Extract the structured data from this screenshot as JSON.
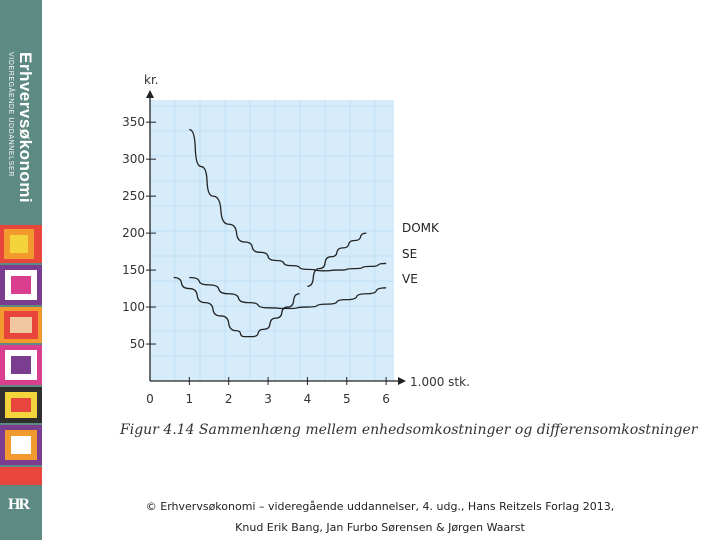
{
  "sidebar": {
    "brand_title": "Erhvervsøkonomi",
    "brand_subtitle": "VIDEREGÅENDE UDDANNELSER",
    "publisher_logo": "HR",
    "pattern_colors": [
      "#e8463c",
      "#f29a2e",
      "#f3d43b",
      "#7b3d8f",
      "#d93f8e",
      "#2f2f2f",
      "#ffffff",
      "#f0c7a0"
    ]
  },
  "chart_data": {
    "type": "line",
    "ylabel": "kr.",
    "xlabel": "1.000 stk.",
    "xlim": [
      0,
      6.2
    ],
    "ylim": [
      0,
      380
    ],
    "x_ticks": [
      0,
      1,
      2,
      3,
      4,
      5,
      6
    ],
    "y_ticks": [
      50,
      100,
      150,
      200,
      250,
      300,
      350
    ],
    "grid": true,
    "grid_color": "#bfe0f5",
    "series": [
      {
        "name": "DOMK",
        "x": [
          4.0,
          4.3,
          4.6,
          4.9,
          5.2,
          5.5
        ],
        "y": [
          128,
          152,
          168,
          180,
          190,
          200
        ]
      },
      {
        "name": "SE",
        "x": [
          1.0,
          1.3,
          1.6,
          2.0,
          2.4,
          2.8,
          3.2,
          3.6,
          4.0,
          4.4,
          4.8,
          5.2,
          5.6,
          6.0
        ],
        "y": [
          340,
          290,
          250,
          212,
          188,
          174,
          163,
          156,
          151,
          149,
          150,
          152,
          155,
          159
        ]
      },
      {
        "name": "VE",
        "x": [
          1.0,
          1.5,
          2.0,
          2.5,
          3.0,
          3.5,
          4.0,
          4.5,
          5.0,
          5.5,
          6.0
        ],
        "y": [
          140,
          130,
          118,
          106,
          99,
          98,
          100,
          104,
          110,
          118,
          126
        ]
      },
      {
        "name": "",
        "x": [
          0.6,
          1.0,
          1.4,
          1.8,
          2.2,
          2.4,
          2.6,
          2.9,
          3.2,
          3.5,
          3.8
        ],
        "y": [
          140,
          125,
          106,
          88,
          68,
          60,
          60,
          70,
          85,
          100,
          118
        ]
      }
    ],
    "caption": "Figur 4.14 Sammenhæng mellem enhedsomkostninger og differensomkostninger"
  },
  "footer": {
    "line1": "© Erhvervsøkonomi – videregående uddannelser, 4. udg., Hans Reitzels Forlag 2013,",
    "line2": "Knud Erik Bang, Jan Furbo Sørensen & Jørgen Waarst"
  }
}
